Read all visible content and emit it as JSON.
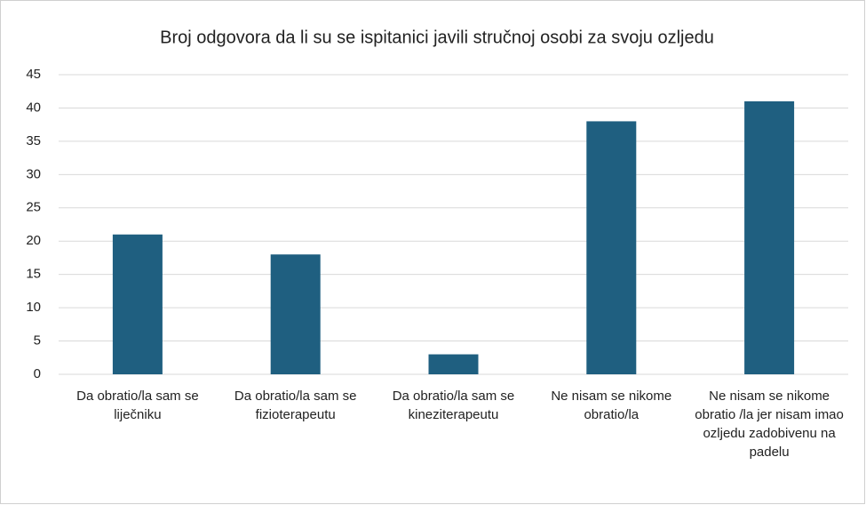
{
  "chart_data": {
    "type": "bar",
    "title": "Broj odgovora da li su se ispitanici javili stručnoj osobi za svoju ozljedu",
    "categories": [
      "Da obratio/la sam se liječniku",
      "Da obratio/la sam se fizioterapeutu",
      "Da obratio/la sam se kineziterapeutu",
      "Ne nisam se nikome obratio/la",
      "Ne nisam se nikome obratio /la jer nisam imao ozljedu zadobivenu na padelu"
    ],
    "values": [
      21,
      18,
      3,
      38,
      41
    ],
    "color": "#1f5f80",
    "ylim": [
      0,
      45
    ],
    "yticks": [
      0,
      5,
      10,
      15,
      20,
      25,
      30,
      35,
      40,
      45
    ],
    "grid": true
  }
}
